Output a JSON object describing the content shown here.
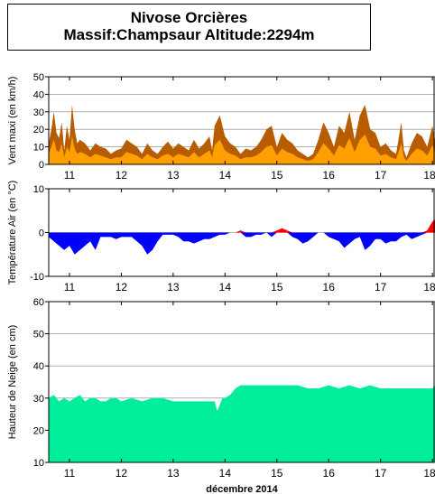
{
  "title": {
    "line1": "Nivose Orcières",
    "line2": "Massif:Champsaur Altitude:2294m"
  },
  "xaxis": {
    "label": "décembre 2014",
    "day_labels": [
      "11",
      "12",
      "13",
      "14",
      "15",
      "16",
      "17",
      "18"
    ]
  },
  "colors": {
    "wind_fill": "#FFA000",
    "wind_outline": "#B85C00",
    "temp_cold": "#0000FF",
    "temp_warm": "#FF0000",
    "snow": "#00EE99"
  },
  "chart_data": [
    {
      "type": "area",
      "id": "wind",
      "ylabel": "Vent maxi (en km/h)",
      "ylim": [
        0,
        50
      ],
      "yticks": [
        0,
        10,
        20,
        30,
        40,
        50
      ],
      "x_unit": "day of December 2014",
      "xlim": [
        10.6,
        18.05
      ],
      "series": [
        {
          "x": [
            10.6,
            10.65,
            10.7,
            10.75,
            10.8,
            10.85,
            10.9,
            10.95,
            11.0,
            11.05,
            11.1,
            11.15,
            11.2,
            11.3,
            11.4,
            11.5,
            11.6,
            11.7,
            11.8,
            11.9,
            12.0,
            12.1,
            12.2,
            12.3,
            12.4,
            12.5,
            12.6,
            12.7,
            12.8,
            12.9,
            13.0,
            13.1,
            13.2,
            13.3,
            13.4,
            13.5,
            13.6,
            13.7,
            13.75,
            13.8,
            13.9,
            14.0,
            14.1,
            14.2,
            14.3,
            14.4,
            14.5,
            14.6,
            14.7,
            14.8,
            14.9,
            15.0,
            15.1,
            15.2,
            15.3,
            15.4,
            15.5,
            15.6,
            15.7,
            15.8,
            15.9,
            16.0,
            16.1,
            16.2,
            16.3,
            16.4,
            16.5,
            16.6,
            16.7,
            16.8,
            16.9,
            17.0,
            17.1,
            17.2,
            17.3,
            17.4,
            17.45,
            17.5,
            17.6,
            17.7,
            17.8,
            17.9,
            18.0,
            18.05
          ],
          "values": [
            12,
            20,
            30,
            18,
            15,
            24,
            8,
            22,
            14,
            34,
            20,
            12,
            14,
            12,
            8,
            12,
            10,
            9,
            6,
            8,
            9,
            14,
            12,
            10,
            6,
            12,
            8,
            6,
            10,
            13,
            9,
            12,
            10,
            8,
            14,
            9,
            12,
            16,
            8,
            22,
            28,
            16,
            12,
            10,
            6,
            9,
            8,
            10,
            14,
            20,
            22,
            10,
            18,
            14,
            12,
            8,
            6,
            4,
            6,
            14,
            24,
            18,
            10,
            22,
            18,
            30,
            14,
            28,
            34,
            20,
            18,
            10,
            12,
            8,
            6,
            24,
            8,
            4,
            12,
            18,
            16,
            10,
            22,
            14
          ]
        },
        {
          "x": [
            10.6,
            10.65,
            10.7,
            10.75,
            10.8,
            10.85,
            10.9,
            10.95,
            11.0,
            11.05,
            11.1,
            11.15,
            11.2,
            11.3,
            11.4,
            11.5,
            11.6,
            11.7,
            11.8,
            11.9,
            12.0,
            12.1,
            12.2,
            12.3,
            12.4,
            12.5,
            12.6,
            12.7,
            12.8,
            12.9,
            13.0,
            13.1,
            13.2,
            13.3,
            13.4,
            13.5,
            13.6,
            13.7,
            13.75,
            13.8,
            13.9,
            14.0,
            14.1,
            14.2,
            14.3,
            14.4,
            14.5,
            14.6,
            14.7,
            14.8,
            14.9,
            15.0,
            15.1,
            15.2,
            15.3,
            15.4,
            15.5,
            15.6,
            15.7,
            15.8,
            15.9,
            16.0,
            16.1,
            16.2,
            16.3,
            16.4,
            16.5,
            16.6,
            16.7,
            16.8,
            16.9,
            17.0,
            17.1,
            17.2,
            17.3,
            17.4,
            17.45,
            17.5,
            17.6,
            17.7,
            17.8,
            17.9,
            18.0,
            18.05
          ],
          "values": [
            6,
            10,
            14,
            8,
            7,
            12,
            4,
            10,
            7,
            16,
            9,
            6,
            7,
            6,
            4,
            6,
            5,
            4,
            3,
            4,
            4,
            7,
            6,
            5,
            3,
            6,
            4,
            3,
            5,
            6,
            4,
            6,
            5,
            4,
            7,
            4,
            6,
            8,
            4,
            11,
            14,
            8,
            6,
            5,
            3,
            4,
            4,
            5,
            7,
            10,
            11,
            5,
            9,
            7,
            6,
            4,
            3,
            2,
            3,
            7,
            12,
            9,
            5,
            11,
            9,
            15,
            7,
            14,
            17,
            10,
            9,
            5,
            6,
            4,
            3,
            12,
            4,
            2,
            6,
            9,
            8,
            5,
            11,
            7
          ]
        }
      ]
    },
    {
      "type": "area",
      "id": "temperature",
      "ylabel": "Température Air (en °C)",
      "ylim": [
        -10,
        10
      ],
      "yticks": [
        -10,
        0,
        10
      ],
      "x_unit": "day of December 2014",
      "xlim": [
        10.6,
        18.05
      ],
      "x": [
        10.6,
        10.7,
        10.8,
        10.9,
        11.0,
        11.1,
        11.2,
        11.3,
        11.4,
        11.5,
        11.6,
        11.7,
        11.8,
        11.9,
        12.0,
        12.1,
        12.2,
        12.3,
        12.4,
        12.5,
        12.6,
        12.7,
        12.8,
        12.9,
        13.0,
        13.1,
        13.2,
        13.3,
        13.4,
        13.5,
        13.6,
        13.7,
        13.8,
        13.9,
        14.0,
        14.1,
        14.2,
        14.3,
        14.4,
        14.5,
        14.6,
        14.7,
        14.8,
        14.9,
        15.0,
        15.1,
        15.2,
        15.3,
        15.4,
        15.5,
        15.6,
        15.7,
        15.8,
        15.9,
        16.0,
        16.1,
        16.2,
        16.3,
        16.4,
        16.5,
        16.6,
        16.7,
        16.8,
        16.9,
        17.0,
        17.1,
        17.2,
        17.3,
        17.4,
        17.5,
        17.6,
        17.7,
        17.8,
        17.9,
        18.0,
        18.05
      ],
      "values": [
        -1,
        -2,
        -3,
        -4,
        -3,
        -5,
        -4,
        -3,
        -2,
        -4,
        -1,
        -1,
        -1,
        -1.5,
        -1,
        -1,
        -1,
        -2,
        -3,
        -5,
        -4,
        -2,
        -0.5,
        -0.5,
        -0.5,
        -1,
        -2,
        -2,
        -2.5,
        -2,
        -1.5,
        -1.5,
        -1,
        -0.5,
        -0.5,
        0,
        0,
        0.5,
        -1,
        -1,
        -0.5,
        -0.5,
        0,
        -1,
        0.5,
        1,
        0.5,
        -1,
        -1.5,
        -2.5,
        -2,
        -1,
        0,
        0,
        -1,
        -1.5,
        -2,
        -3.5,
        -2.5,
        -1.5,
        -1,
        -4,
        -3,
        -1.5,
        -1.5,
        -2.5,
        -2,
        -2,
        -1,
        -0.5,
        -1.5,
        -1,
        -0.5,
        0.5,
        2.5,
        3
      ]
    },
    {
      "type": "area",
      "id": "snow_height",
      "ylabel": "Hauteur de Neige (en cm)",
      "ylim": [
        10,
        60
      ],
      "yticks": [
        10,
        20,
        30,
        40,
        50,
        60
      ],
      "x_unit": "day of December 2014",
      "xlim": [
        10.6,
        18.05
      ],
      "x": [
        10.6,
        10.7,
        10.8,
        10.9,
        11.0,
        11.1,
        11.2,
        11.3,
        11.4,
        11.5,
        11.6,
        11.7,
        11.8,
        11.9,
        12.0,
        12.2,
        12.4,
        12.6,
        12.8,
        13.0,
        13.2,
        13.4,
        13.6,
        13.8,
        13.85,
        13.9,
        13.95,
        14.0,
        14.1,
        14.2,
        14.3,
        14.4,
        14.6,
        14.8,
        15.0,
        15.2,
        15.4,
        15.6,
        15.8,
        16.0,
        16.2,
        16.4,
        16.6,
        16.8,
        17.0,
        17.2,
        17.4,
        17.6,
        17.8,
        18.0,
        18.05
      ],
      "values": [
        30,
        31,
        29,
        30,
        29,
        30,
        31,
        29,
        30,
        30,
        29,
        29,
        30,
        30,
        29,
        30,
        29,
        30,
        30,
        29,
        29,
        29,
        29,
        29,
        26,
        28,
        30,
        30,
        31,
        33,
        34,
        34,
        34,
        34,
        34,
        34,
        34,
        33,
        33,
        34,
        33,
        34,
        33,
        34,
        33,
        33,
        33,
        33,
        33,
        33,
        34
      ]
    }
  ]
}
